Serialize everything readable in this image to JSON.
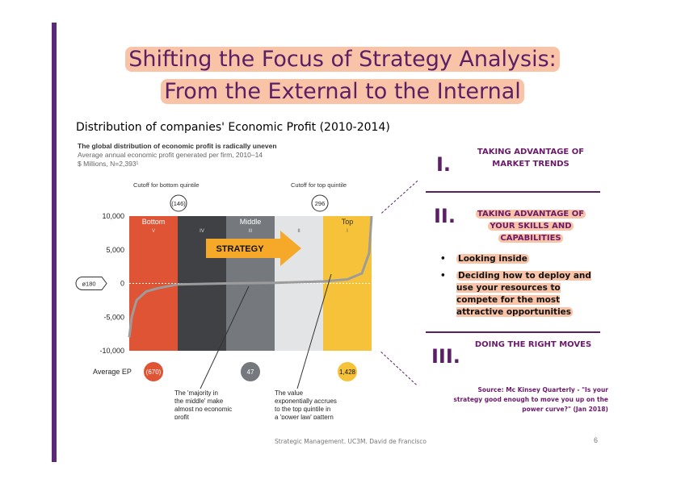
{
  "slide": {
    "title_line1": "Shifting the Focus of Strategy Analysis:",
    "title_line2": "From the External to the Internal",
    "subtitle": "Distribution of companies' Economic Profit (2010-2014)",
    "footer": "Strategic Management. UC3M. David de Francisco",
    "page_number": "6",
    "source": "Source: Mc Kinsey Quarterly - \"Is your strategy good enough to move you up on the power curve?\" (Jan 2018)"
  },
  "sections": [
    {
      "numeral": "I.",
      "text_lines": [
        "TAKING ADVANTAGE OF",
        "MARKET TRENDS"
      ]
    },
    {
      "numeral": "II.",
      "text_lines": [
        "TAKING ADVANTAGE OF",
        "YOUR SKILLS AND",
        "CAPABILITIES"
      ],
      "bullets": [
        "Looking inside",
        "Deciding how to deploy and use your resources to compete for the most attractive opportunities"
      ]
    },
    {
      "numeral": "III.",
      "text_lines": [
        "DOING THE RIGHT MOVES"
      ]
    }
  ],
  "chart_data": {
    "type": "area",
    "title": "The global distribution of economic profit is radically uneven",
    "subtitle": "Average annual economic profit generated per firm, 2010–14",
    "units_note": "$ Millions, N=2,393¹",
    "ylim": [
      -10000,
      10000
    ],
    "yticks": [
      10000,
      5000,
      0,
      -5000,
      -10000
    ],
    "ytick_labels": [
      "10,000",
      "5,000",
      "0",
      "-5,000",
      "-10,000"
    ],
    "zero_marker": "ø180",
    "quintiles": [
      {
        "name": "Bottom",
        "roman": "V",
        "color": "#e05436"
      },
      {
        "name": "",
        "roman": "IV",
        "color": "#3f4145"
      },
      {
        "name": "Middle",
        "roman": "III",
        "color": "#75797d"
      },
      {
        "name": "",
        "roman": "II",
        "color": "#e3e4e6"
      },
      {
        "name": "Top",
        "roman": "I",
        "color": "#f6c23a"
      }
    ],
    "cutoffs": [
      {
        "label": "Cutoff for bottom quintile",
        "value": "(146)"
      },
      {
        "label": "Cutoff for top quintile",
        "value": "296"
      }
    ],
    "average_ep_label": "Average EP",
    "average_ep": [
      {
        "quintile": "V",
        "value": "(670)",
        "color": "#e05436"
      },
      {
        "quintile": "III",
        "value": "47",
        "color": "#75797d"
      },
      {
        "quintile": "I",
        "value": "1,428",
        "color": "#f6c23a"
      }
    ],
    "annotations": [
      "The 'majority in the middle' make almost no economic profit",
      "The value exponentially accrues to the top quintile in a 'power law' pattern"
    ],
    "arrow_label": "STRATEGY",
    "curve_points": [
      {
        "pct": 0,
        "ep": -8000
      },
      {
        "pct": 1,
        "ep": -5000
      },
      {
        "pct": 3,
        "ep": -2500
      },
      {
        "pct": 7,
        "ep": -1200
      },
      {
        "pct": 12,
        "ep": -700
      },
      {
        "pct": 20,
        "ep": -146
      },
      {
        "pct": 40,
        "ep": 0
      },
      {
        "pct": 60,
        "ep": 80
      },
      {
        "pct": 80,
        "ep": 296
      },
      {
        "pct": 90,
        "ep": 600
      },
      {
        "pct": 96,
        "ep": 1500
      },
      {
        "pct": 99,
        "ep": 4500
      },
      {
        "pct": 100,
        "ep": 10000
      }
    ]
  }
}
